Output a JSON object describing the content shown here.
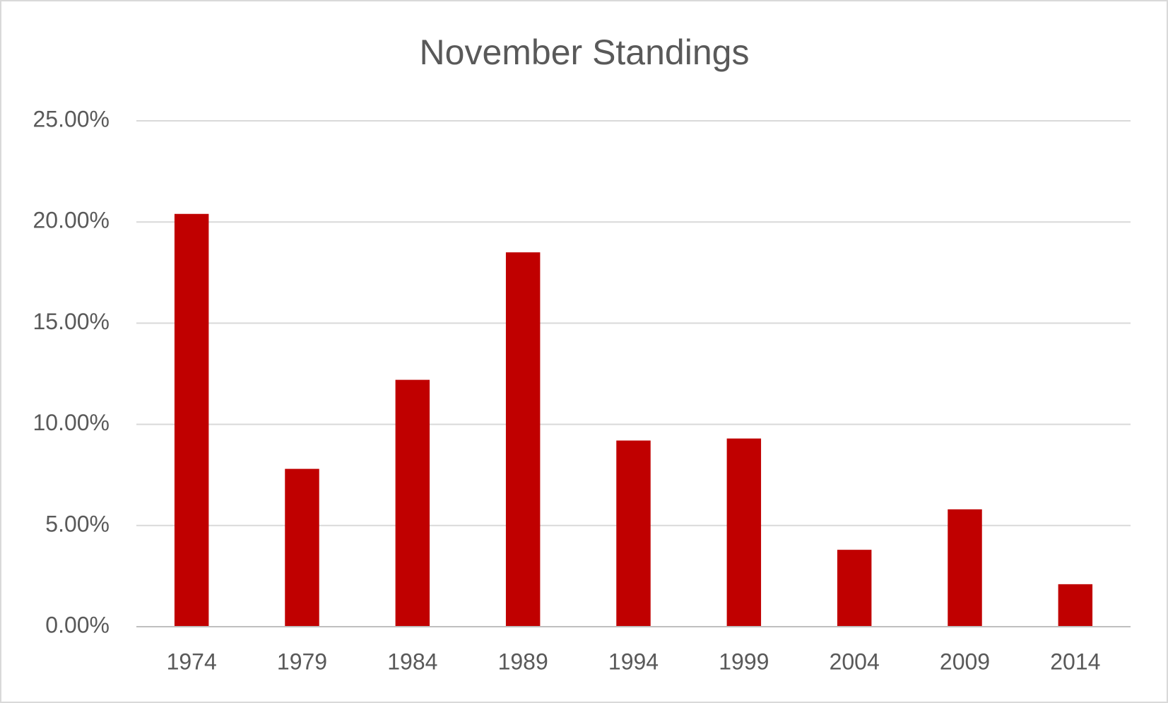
{
  "chart_data": {
    "type": "bar",
    "title": "November Standings",
    "categories": [
      "1974",
      "1979",
      "1984",
      "1989",
      "1994",
      "1999",
      "2004",
      "2009",
      "2014"
    ],
    "values": [
      20.4,
      7.8,
      12.2,
      18.5,
      9.2,
      9.3,
      3.8,
      5.8,
      2.1
    ],
    "color": "#c00000",
    "ylim": [
      0,
      25
    ],
    "yticks": [
      {
        "value": 0,
        "label": "0.00%"
      },
      {
        "value": 5,
        "label": "5.00%"
      },
      {
        "value": 10,
        "label": "10.00%"
      },
      {
        "value": 15,
        "label": "15.00%"
      },
      {
        "value": 20,
        "label": "20.00%"
      },
      {
        "value": 25,
        "label": "25.00%"
      }
    ],
    "grid": true
  }
}
